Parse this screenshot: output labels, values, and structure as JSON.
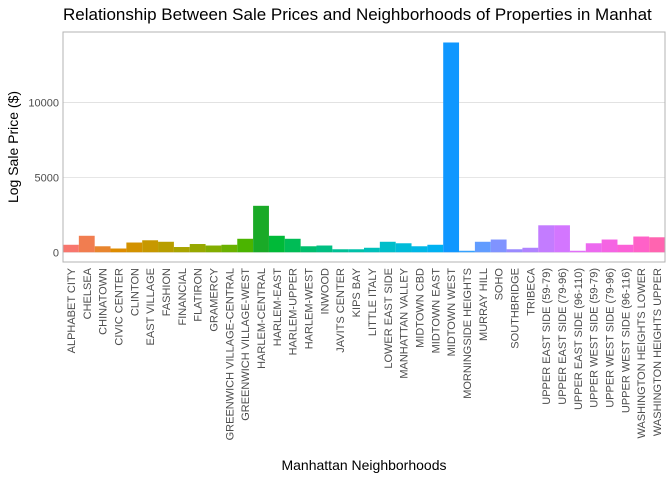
{
  "chart_data": {
    "type": "bar",
    "title": "Relationship Between Sale Prices and Neighborhoods of Properties in Manhat",
    "x_label": "Manhattan Neighborhoods",
    "y_label": "Log Sale Price ($)",
    "categories": [
      "ALPHABET CITY",
      "CHELSEA",
      "CHINATOWN",
      "CIVIC CENTER",
      "CLINTON",
      "EAST VILLAGE",
      "FASHION",
      "FINANCIAL",
      "FLATIRON",
      "GRAMERCY",
      "GREENWICH VILLAGE-CENTRAL",
      "GREENWICH VILLAGE-WEST",
      "HARLEM-CENTRAL",
      "HARLEM-EAST",
      "HARLEM-UPPER",
      "HARLEM-WEST",
      "INWOOD",
      "JAVITS CENTER",
      "KIPS BAY",
      "LITTLE ITALY",
      "LOWER EAST SIDE",
      "MANHATTAN VALLEY",
      "MIDTOWN CBD",
      "MIDTOWN EAST",
      "MIDTOWN WEST",
      "MORNINGSIDE HEIGHTS",
      "MURRAY HILL",
      "SOHO",
      "SOUTHBRIDGE",
      "TRIBECA",
      "UPPER EAST SIDE (59-79)",
      "UPPER EAST SIDE (79-96)",
      "UPPER EAST SIDE (96-110)",
      "UPPER WEST SIDE (59-79)",
      "UPPER WEST SIDE (79-96)",
      "UPPER WEST SIDE (96-116)",
      "WASHINGTON HEIGHTS LOWER",
      "WASHINGTON HEIGHTS UPPER"
    ],
    "values": [
      500,
      1100,
      400,
      250,
      650,
      800,
      700,
      350,
      550,
      450,
      500,
      900,
      3100,
      1100,
      900,
      400,
      450,
      200,
      200,
      300,
      700,
      600,
      400,
      500,
      14000,
      100,
      700,
      850,
      200,
      300,
      1800,
      1800,
      100,
      600,
      850,
      500,
      1050,
      1000
    ],
    "colors": [
      "#F8766D",
      "#F17D50",
      "#E8852E",
      "#DE8C00",
      "#D39200",
      "#C79800",
      "#B89E00",
      "#A9A400",
      "#97A800",
      "#83AD00",
      "#6BB100",
      "#4BB400",
      "#1AAA27",
      "#00BA38",
      "#00BC56",
      "#00BE6D",
      "#00BF82",
      "#00C096",
      "#00C1A9",
      "#00C0BA",
      "#00BECA",
      "#00BBD9",
      "#00B7E6",
      "#00B1F2",
      "#0F97FF",
      "#35A2FF",
      "#619CFF",
      "#8093FF",
      "#9A8AFF",
      "#B083FF",
      "#C37CFF",
      "#D376FF",
      "#E16FF8",
      "#EC69EF",
      "#F564E3",
      "#FB61D7",
      "#FF61C8",
      "#FF64B0"
    ],
    "ylim": [
      -650,
      14700
    ],
    "yticks": [
      0,
      5000,
      10000
    ],
    "grid": true
  }
}
